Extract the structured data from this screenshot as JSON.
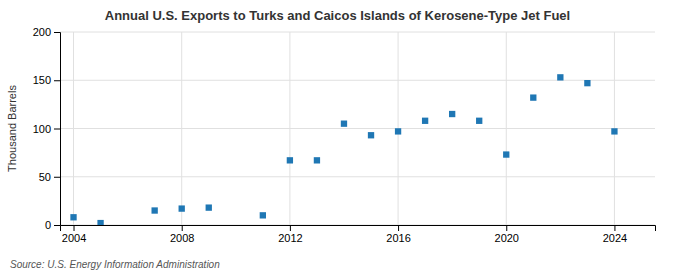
{
  "chart_data": {
    "type": "scatter",
    "title": "Annual U.S. Exports to Turks and Caicos Islands of Kerosene-Type Jet Fuel",
    "ylabel": "Thousand Barrels",
    "source": "Source: U.S. Energy Information Administration",
    "x": [
      2004,
      2005,
      2007,
      2008,
      2009,
      2011,
      2012,
      2013,
      2014,
      2015,
      2016,
      2017,
      2018,
      2019,
      2020,
      2021,
      2022,
      2023,
      2024
    ],
    "values": [
      8,
      2,
      15,
      17,
      18,
      10,
      67,
      67,
      105,
      93,
      97,
      108,
      115,
      108,
      73,
      132,
      153,
      147,
      97
    ],
    "xlim": [
      2003.5,
      2025.5
    ],
    "ylim": [
      0,
      200
    ],
    "xticks": [
      2004,
      2008,
      2012,
      2016,
      2020,
      2024
    ],
    "yticks": [
      0,
      50,
      100,
      150,
      200
    ],
    "grid": true,
    "marker": "square"
  }
}
